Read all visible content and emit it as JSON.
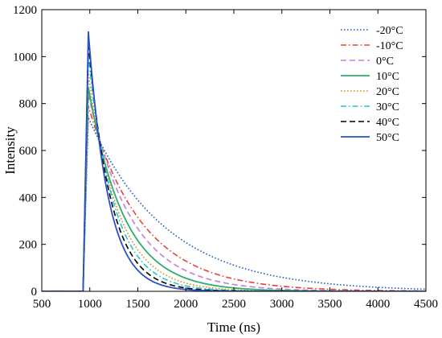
{
  "chart_data": {
    "type": "line",
    "xlabel": "Time (ns)",
    "ylabel": "Intensity",
    "xlim": [
      500,
      4500
    ],
    "ylim": [
      0,
      1200
    ],
    "xticks": [
      500,
      1000,
      1500,
      2000,
      2500,
      3000,
      3500,
      4000,
      4500
    ],
    "yticks": [
      0,
      200,
      400,
      600,
      800,
      1000,
      1200
    ],
    "grid": false,
    "legend_position": "top-right",
    "series": [
      {
        "name": "-20°C",
        "color": "#1f5fbf",
        "dash": "dot",
        "onset": 930,
        "peak_time": 985,
        "peak": 740,
        "tau": 800
      },
      {
        "name": "-10°C",
        "color": "#e8413a",
        "dash": "dashdot",
        "onset": 930,
        "peak_time": 985,
        "peak": 790,
        "tau": 560
      },
      {
        "name": "0°C",
        "color": "#c77be0",
        "dash": "dash",
        "onset": 930,
        "peak_time": 985,
        "peak": 840,
        "tau": 450
      },
      {
        "name": "10°C",
        "color": "#2cae6a",
        "dash": "solid",
        "onset": 930,
        "peak_time": 985,
        "peak": 870,
        "tau": 370
      },
      {
        "name": "20°C",
        "color": "#d8901c",
        "dash": "dot",
        "onset": 930,
        "peak_time": 985,
        "peak": 930,
        "tau": 310
      },
      {
        "name": "30°C",
        "color": "#1fc9c9",
        "dash": "dashdot",
        "onset": 930,
        "peak_time": 985,
        "peak": 1000,
        "tau": 270
      },
      {
        "name": "40°C",
        "color": "#000000",
        "dash": "dash",
        "onset": 930,
        "peak_time": 985,
        "peak": 1060,
        "tau": 235
      },
      {
        "name": "50°C",
        "color": "#2a52c8",
        "dash": "solid",
        "onset": 930,
        "peak_time": 985,
        "peak": 1105,
        "tau": 205
      }
    ]
  }
}
